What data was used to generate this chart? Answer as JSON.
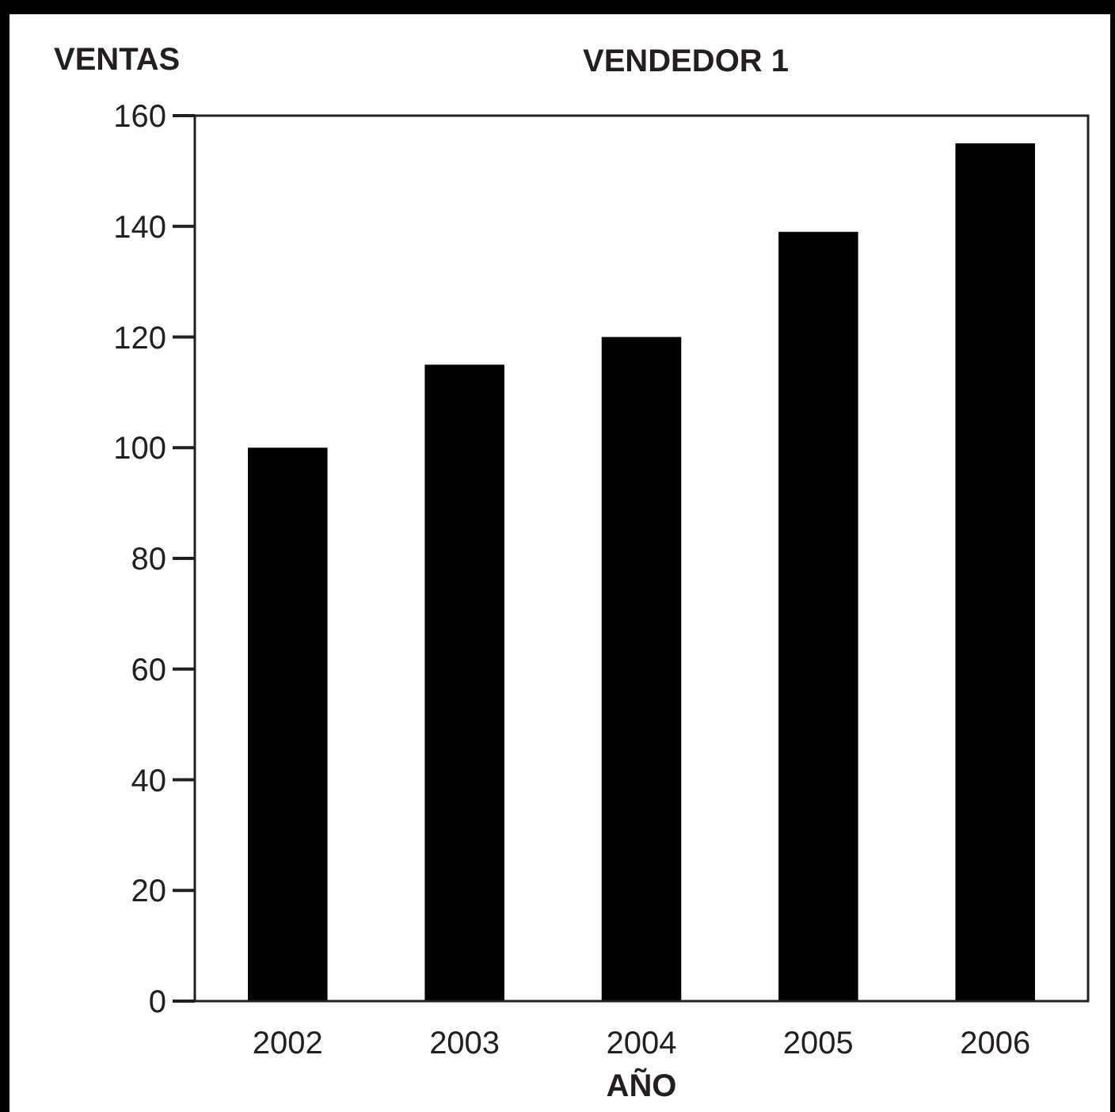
{
  "chart_data": {
    "type": "bar",
    "title": "VENDEDOR 1",
    "ylabel": "VENTAS",
    "xlabel": "AÑO",
    "categories": [
      "2002",
      "2003",
      "2004",
      "2005",
      "2006"
    ],
    "values": [
      100,
      115,
      120,
      139,
      155
    ],
    "color": "#000000",
    "ylim": [
      0,
      160
    ],
    "yticks": [
      0,
      20,
      40,
      60,
      80,
      100,
      120,
      140,
      160
    ],
    "grid": false
  }
}
